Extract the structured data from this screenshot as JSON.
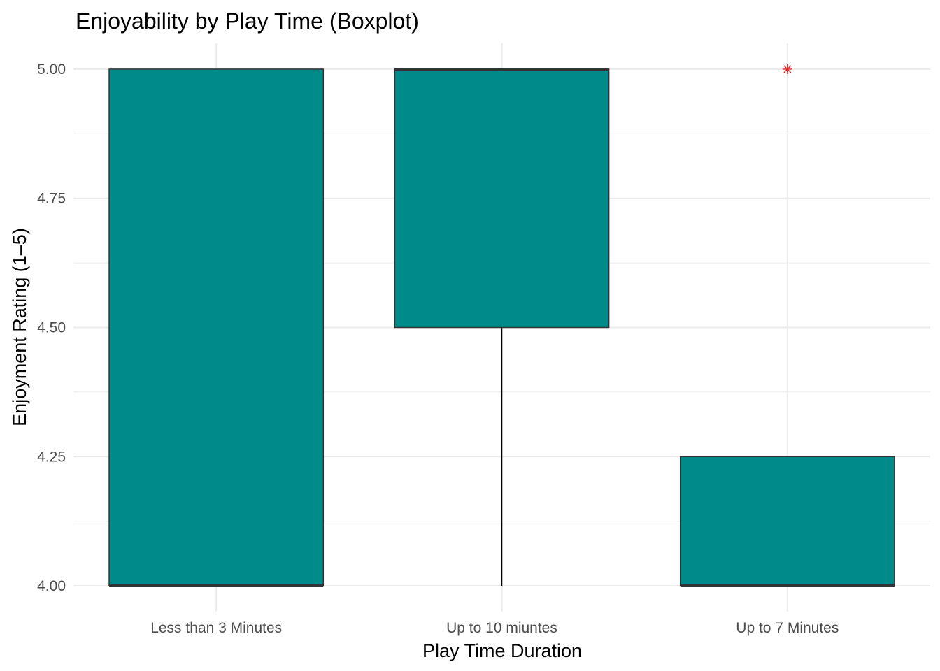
{
  "chart_data": {
    "type": "boxplot",
    "title": "Enjoyability by Play Time (Boxplot)",
    "xlabel": "Play Time Duration",
    "ylabel": "Enjoyment Rating (1–5)",
    "ylim": [
      3.95,
      5.05
    ],
    "yticks": [
      "4.00",
      "4.25",
      "4.50",
      "4.75",
      "5.00"
    ],
    "ytick_values": [
      4.0,
      4.25,
      4.5,
      4.75,
      5.0
    ],
    "categories": [
      "Less than 3 Minutes",
      "Up to 10 miuntes",
      "Up to 7 Minutes"
    ],
    "boxes": [
      {
        "category": "Less than 3 Minutes",
        "whisker_low": 4.0,
        "q1": 4.0,
        "median": 4.0,
        "q3": 5.0,
        "whisker_high": 5.0,
        "outliers": []
      },
      {
        "category": "Up to 10 miuntes",
        "whisker_low": 4.0,
        "q1": 4.5,
        "median": 5.0,
        "q3": 5.0,
        "whisker_high": 5.0,
        "outliers": []
      },
      {
        "category": "Up to 7 Minutes",
        "whisker_low": 4.0,
        "q1": 4.0,
        "median": 4.0,
        "q3": 4.25,
        "whisker_high": 4.25,
        "outliers": [
          5.0
        ]
      }
    ],
    "grid": true,
    "legend": "none",
    "colors": {
      "box_fill": "#008b8b",
      "box_stroke": "#333333",
      "outlier": "#e41a1c",
      "grid": "#ebebeb"
    }
  }
}
